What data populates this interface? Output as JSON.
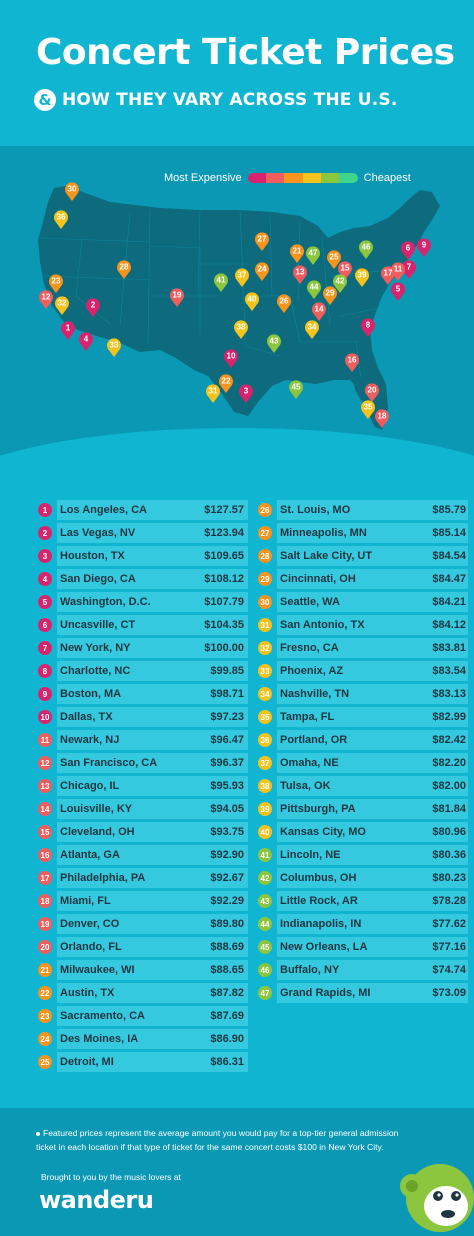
{
  "header": {
    "title": "Concert Ticket Prices",
    "amp": "&",
    "subtitle": "HOW THEY VARY ACROSS THE U.S."
  },
  "legend": {
    "most_label": "Most Expensive",
    "least_label": "Cheapest",
    "colors": [
      "#d8246c",
      "#f05d5e",
      "#f7941d",
      "#f5c31c",
      "#8cc63f",
      "#3dd68c"
    ]
  },
  "colors": {
    "tier1": "#d8246c",
    "tier2": "#f05d5e",
    "tier3": "#f7941d",
    "tier4": "#f5c31c",
    "tier5": "#8cc63f",
    "tier6": "#3dd68c",
    "map_land": "#0d6b7d",
    "map_bg": "#0b98b4",
    "page_bg": "#10b6d1",
    "bar": "#35c9df"
  },
  "cities": [
    {
      "rank": "1",
      "city": "Los Angeles, CA",
      "price": "$127.57",
      "tier": "tier1"
    },
    {
      "rank": "2",
      "city": "Las Vegas, NV",
      "price": "$123.94",
      "tier": "tier1"
    },
    {
      "rank": "3",
      "city": "Houston, TX",
      "price": "$109.65",
      "tier": "tier1"
    },
    {
      "rank": "4",
      "city": "San Diego, CA",
      "price": "$108.12",
      "tier": "tier1"
    },
    {
      "rank": "5",
      "city": "Washington, D.C.",
      "price": "$107.79",
      "tier": "tier1"
    },
    {
      "rank": "6",
      "city": "Uncasville, CT",
      "price": "$104.35",
      "tier": "tier1"
    },
    {
      "rank": "7",
      "city": "New York, NY",
      "price": "$100.00",
      "tier": "tier1"
    },
    {
      "rank": "8",
      "city": "Charlotte, NC",
      "price": "$99.85",
      "tier": "tier1"
    },
    {
      "rank": "9",
      "city": "Boston, MA",
      "price": "$98.71",
      "tier": "tier1"
    },
    {
      "rank": "10",
      "city": "Dallas, TX",
      "price": "$97.23",
      "tier": "tier1"
    },
    {
      "rank": "11",
      "city": "Newark, NJ",
      "price": "$96.47",
      "tier": "tier2"
    },
    {
      "rank": "12",
      "city": "San Francisco, CA",
      "price": "$96.37",
      "tier": "tier2"
    },
    {
      "rank": "13",
      "city": "Chicago, IL",
      "price": "$95.93",
      "tier": "tier2"
    },
    {
      "rank": "14",
      "city": "Louisville, KY",
      "price": "$94.05",
      "tier": "tier2"
    },
    {
      "rank": "15",
      "city": "Cleveland, OH",
      "price": "$93.75",
      "tier": "tier2"
    },
    {
      "rank": "16",
      "city": "Atlanta, GA",
      "price": "$92.90",
      "tier": "tier2"
    },
    {
      "rank": "17",
      "city": "Philadelphia, PA",
      "price": "$92.67",
      "tier": "tier2"
    },
    {
      "rank": "18",
      "city": "Miami, FL",
      "price": "$92.29",
      "tier": "tier2"
    },
    {
      "rank": "19",
      "city": "Denver, CO",
      "price": "$89.80",
      "tier": "tier2"
    },
    {
      "rank": "20",
      "city": "Orlando, FL",
      "price": "$88.69",
      "tier": "tier2"
    },
    {
      "rank": "21",
      "city": "Milwaukee, WI",
      "price": "$88.65",
      "tier": "tier3"
    },
    {
      "rank": "22",
      "city": "Austin, TX",
      "price": "$87.82",
      "tier": "tier3"
    },
    {
      "rank": "23",
      "city": "Sacramento, CA",
      "price": "$87.69",
      "tier": "tier3"
    },
    {
      "rank": "24",
      "city": "Des Moines, IA",
      "price": "$86.90",
      "tier": "tier3"
    },
    {
      "rank": "25",
      "city": "Detroit, MI",
      "price": "$86.31",
      "tier": "tier3"
    },
    {
      "rank": "26",
      "city": "St. Louis, MO",
      "price": "$85.79",
      "tier": "tier3"
    },
    {
      "rank": "27",
      "city": "Minneapolis, MN",
      "price": "$85.14",
      "tier": "tier3"
    },
    {
      "rank": "28",
      "city": "Salt Lake City, UT",
      "price": "$84.54",
      "tier": "tier3"
    },
    {
      "rank": "29",
      "city": "Cincinnati, OH",
      "price": "$84.47",
      "tier": "tier3"
    },
    {
      "rank": "30",
      "city": "Seattle, WA",
      "price": "$84.21",
      "tier": "tier3"
    },
    {
      "rank": "31",
      "city": "San Antonio, TX",
      "price": "$84.12",
      "tier": "tier4"
    },
    {
      "rank": "32",
      "city": "Fresno, CA",
      "price": "$83.81",
      "tier": "tier4"
    },
    {
      "rank": "33",
      "city": "Phoenix, AZ",
      "price": "$83.54",
      "tier": "tier4"
    },
    {
      "rank": "34",
      "city": "Nashville, TN",
      "price": "$83.13",
      "tier": "tier4"
    },
    {
      "rank": "35",
      "city": "Tampa, FL",
      "price": "$82.99",
      "tier": "tier4"
    },
    {
      "rank": "36",
      "city": "Portland, OR",
      "price": "$82.42",
      "tier": "tier4"
    },
    {
      "rank": "37",
      "city": "Omaha, NE",
      "price": "$82.20",
      "tier": "tier4"
    },
    {
      "rank": "38",
      "city": "Tulsa, OK",
      "price": "$82.00",
      "tier": "tier4"
    },
    {
      "rank": "39",
      "city": "Pittsburgh, PA",
      "price": "$81.84",
      "tier": "tier4"
    },
    {
      "rank": "40",
      "city": "Kansas City, MO",
      "price": "$80.96",
      "tier": "tier4"
    },
    {
      "rank": "41",
      "city": "Lincoln, NE",
      "price": "$80.36",
      "tier": "tier5"
    },
    {
      "rank": "42",
      "city": "Columbus, OH",
      "price": "$80.23",
      "tier": "tier5"
    },
    {
      "rank": "43",
      "city": "Little Rock, AR",
      "price": "$78.28",
      "tier": "tier5"
    },
    {
      "rank": "44",
      "city": "Indianapolis, IN",
      "price": "$77.62",
      "tier": "tier5"
    },
    {
      "rank": "45",
      "city": "New Orleans, LA",
      "price": "$77.16",
      "tier": "tier5"
    },
    {
      "rank": "46",
      "city": "Buffalo, NY",
      "price": "$74.74",
      "tier": "tier5"
    },
    {
      "rank": "47",
      "city": "Grand Rapids, MI",
      "price": "$73.09",
      "tier": "tier5"
    }
  ],
  "footer": {
    "note": "Featured prices represent the average amount you would pay for a top-tier general admission ticket in each location if that type of ticket for the same concert costs $100 in New York City.",
    "brought_by": "Brought to you by the music lovers at",
    "brand": "wanderu",
    "mascot_icon": "monkey-mascot-icon"
  }
}
